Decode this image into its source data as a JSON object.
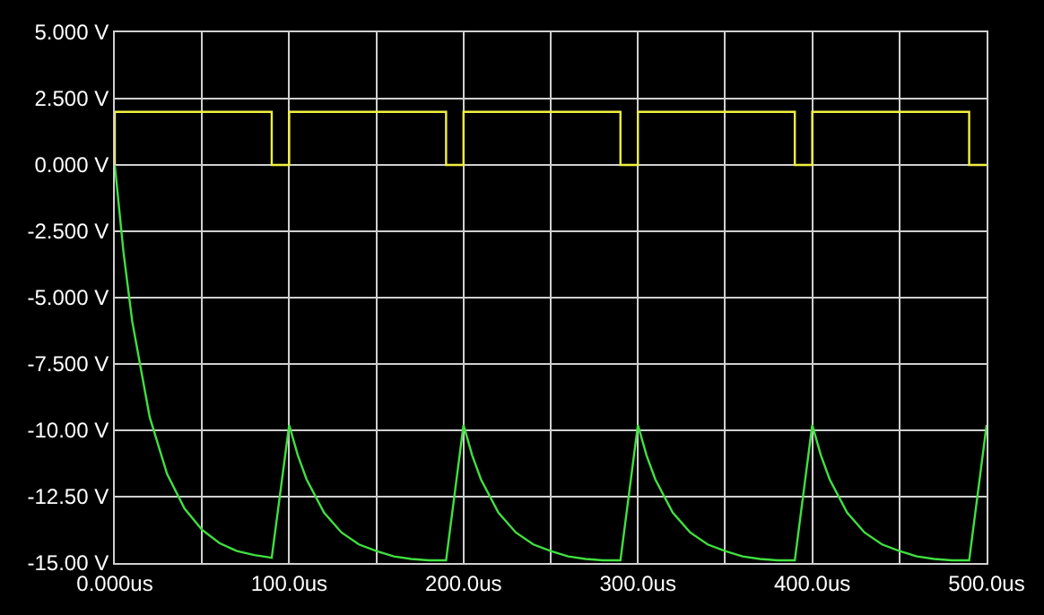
{
  "chart_data": {
    "type": "line",
    "series": [
      {
        "color": "#f0f040",
        "x": [
          0,
          0,
          90,
          90,
          100,
          100,
          190,
          190,
          200,
          200,
          290,
          290,
          300,
          300,
          390,
          390,
          400,
          400,
          490,
          490,
          500
        ],
        "values": [
          0,
          2,
          2,
          0,
          0,
          2,
          2,
          0,
          0,
          2,
          2,
          0,
          0,
          2,
          2,
          0,
          0,
          2,
          2,
          0,
          0
        ]
      },
      {
        "color": "#40e040",
        "x": [
          0,
          5,
          10,
          20,
          30,
          40,
          50,
          60,
          70,
          80,
          90,
          100,
          105,
          110,
          120,
          130,
          140,
          150,
          160,
          170,
          180,
          190,
          200,
          205,
          210,
          220,
          230,
          240,
          250,
          260,
          270,
          280,
          290,
          300,
          305,
          310,
          320,
          330,
          340,
          350,
          360,
          370,
          380,
          390,
          400,
          405,
          410,
          420,
          430,
          440,
          450,
          460,
          470,
          480,
          490,
          500
        ],
        "values": [
          0,
          -3.3,
          -5.9,
          -9.5,
          -11.65,
          -12.95,
          -13.75,
          -14.25,
          -14.55,
          -14.7,
          -14.8,
          -9.8,
          -10.95,
          -11.85,
          -13.1,
          -13.85,
          -14.3,
          -14.55,
          -14.75,
          -14.85,
          -14.9,
          -14.9,
          -9.8,
          -10.95,
          -11.85,
          -13.1,
          -13.85,
          -14.3,
          -14.55,
          -14.75,
          -14.85,
          -14.9,
          -14.9,
          -9.8,
          -10.95,
          -11.85,
          -13.1,
          -13.85,
          -14.3,
          -14.55,
          -14.75,
          -14.85,
          -14.9,
          -14.9,
          -9.8,
          -10.95,
          -11.85,
          -13.1,
          -13.85,
          -14.3,
          -14.55,
          -14.75,
          -14.85,
          -14.9,
          -14.9,
          -9.8
        ]
      }
    ],
    "xlim": [
      0,
      500
    ],
    "xticks": [
      {
        "value": 0,
        "label": "0.000us"
      },
      {
        "value": 100,
        "label": "100.0us"
      },
      {
        "value": 200,
        "label": "200.0us"
      },
      {
        "value": 300,
        "label": "300.0us"
      },
      {
        "value": 400,
        "label": "400.0us"
      },
      {
        "value": 500,
        "label": "500.0us"
      }
    ],
    "ylim": [
      -15,
      5
    ],
    "yticks": [
      {
        "value": 5,
        "label": "5.000 V"
      },
      {
        "value": 2.5,
        "label": "2.500 V"
      },
      {
        "value": 0,
        "label": "0.000 V"
      },
      {
        "value": -2.5,
        "label": "-2.500 V"
      },
      {
        "value": -5,
        "label": "-5.000 V"
      },
      {
        "value": -7.5,
        "label": "-7.500 V"
      },
      {
        "value": -10,
        "label": "-10.00 V"
      },
      {
        "value": -12.5,
        "label": "-12.50 V"
      },
      {
        "value": -15,
        "label": "-15.00 V"
      }
    ],
    "grid": true
  }
}
